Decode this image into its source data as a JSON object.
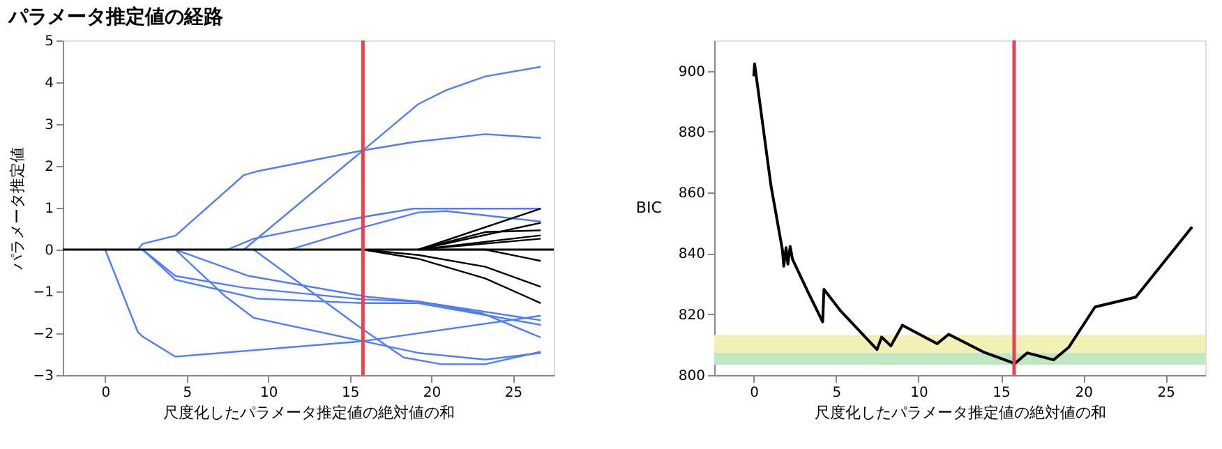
{
  "chart_data": [
    {
      "type": "line",
      "title": "パラメータ推定値の経路",
      "xlabel": "尺度化したパラメータ推定値の絶対値の和",
      "ylabel": "パラメータ推定値",
      "xlim": [
        -2.6,
        27.5
      ],
      "ylim": [
        -3,
        5
      ],
      "xticks": [
        0,
        5,
        10,
        15,
        20,
        25
      ],
      "yticks": [
        -3,
        -2,
        -1,
        0,
        1,
        2,
        3,
        4,
        5
      ],
      "grid": false,
      "marker": "none",
      "line_style": "solid",
      "series": [
        {
          "color": "#4f7df5",
          "x": [
            8.5,
            15.8,
            19.2,
            20.9,
            23.3,
            26.7
          ],
          "values": [
            0,
            2.37,
            3.48,
            3.81,
            4.14,
            4.37
          ]
        },
        {
          "color": "#4f7df5",
          "x": [
            2.0,
            2.3,
            4.3,
            8.5,
            9.3,
            15.8,
            18.9,
            23.3,
            26.7
          ],
          "values": [
            0,
            0.14,
            0.33,
            1.78,
            1.87,
            2.37,
            2.57,
            2.76,
            2.67
          ]
        },
        {
          "color": "#4f7df5",
          "x": [
            7.5,
            9.1,
            15.8,
            18.9,
            26.7
          ],
          "values": [
            0,
            0.26,
            0.78,
            0.98,
            0.98
          ]
        },
        {
          "color": "#4f7df5",
          "x": [
            11.2,
            11.6,
            15.8,
            19.2,
            20.9,
            26.7
          ],
          "values": [
            0,
            0.03,
            0.53,
            0.89,
            0.92,
            0.67
          ]
        },
        {
          "color": "#4f7df5",
          "x": [
            0,
            2.0,
            2.3,
            4.3,
            15.8,
            26.7
          ],
          "values": [
            0,
            -1.97,
            -2.08,
            -2.56,
            -2.19,
            -1.58
          ]
        },
        {
          "color": "#4f7df5",
          "x": [
            2.3,
            4.3,
            8.5,
            15.8,
            19.2,
            26.7
          ],
          "values": [
            0,
            -0.63,
            -0.91,
            -1.19,
            -1.24,
            -1.69
          ]
        },
        {
          "color": "#4f7df5",
          "x": [
            2.3,
            4.3,
            9.3,
            15.8,
            19.2,
            26.7
          ],
          "values": [
            0,
            -0.72,
            -1.17,
            -1.28,
            -1.28,
            -1.8
          ]
        },
        {
          "color": "#4f7df5",
          "x": [
            4.3,
            8.8,
            16.1,
            19.2,
            23.1,
            26.7
          ],
          "values": [
            0,
            -0.63,
            -1.13,
            -1.24,
            -1.52,
            -2.1
          ]
        },
        {
          "color": "#4f7df5",
          "x": [
            4.3,
            7.4,
            9.1,
            15.8,
            19.2,
            23.3,
            26.7
          ],
          "values": [
            0,
            -1.13,
            -1.63,
            -2.19,
            -2.47,
            -2.63,
            -2.47
          ]
        },
        {
          "color": "#4f7df5",
          "x": [
            9.1,
            15.8,
            18.3,
            20.6,
            23.3,
            26.7
          ],
          "values": [
            0,
            -1.91,
            -2.58,
            -2.74,
            -2.74,
            -2.44
          ]
        },
        {
          "color": "#000000",
          "x": [
            15.8,
            19.2,
            23.3,
            26.7
          ],
          "values": [
            0,
            -0.22,
            -0.69,
            -1.28
          ]
        },
        {
          "color": "#000000",
          "x": [
            15.8,
            19.2,
            23.3,
            26.7
          ],
          "values": [
            0,
            -0.13,
            -0.41,
            -0.89
          ]
        },
        {
          "color": "#000000",
          "x": [
            19.2,
            26.7
          ],
          "values": [
            0,
            0.98
          ]
        },
        {
          "color": "#000000",
          "x": [
            19.2,
            23.3,
            26.7
          ],
          "values": [
            0,
            0.42,
            0.46
          ]
        },
        {
          "color": "#000000",
          "x": [
            19.2,
            26.7
          ],
          "values": [
            0,
            0.64
          ]
        },
        {
          "color": "#000000",
          "x": [
            19.2,
            26.7
          ],
          "values": [
            0,
            0.34
          ]
        },
        {
          "color": "#000000",
          "x": [
            19.2,
            26.7
          ],
          "values": [
            0,
            0.26
          ]
        },
        {
          "color": "#000000",
          "x": [
            19.2,
            23.3,
            26.7
          ],
          "values": [
            0,
            0,
            -0.27
          ]
        }
      ],
      "ref_lines": [
        {
          "axis": "y",
          "value": 0,
          "color": "#000000"
        },
        {
          "axis": "x",
          "value": 15.8,
          "color": "#e8414f"
        }
      ]
    },
    {
      "type": "line",
      "xlabel": "尺度化したパラメータ推定値の絶対値の和",
      "ylabel": "BIC",
      "xlim": [
        -2.4,
        27.4
      ],
      "ylim": [
        800,
        910
      ],
      "xticks": [
        0,
        5,
        10,
        15,
        20,
        25
      ],
      "yticks": [
        800,
        820,
        840,
        860,
        880,
        900
      ],
      "grid": false,
      "marker": "none",
      "line_style": "solid",
      "series": [
        {
          "color": "#000000",
          "x": [
            0,
            0.05,
            1.04,
            1.74,
            1.82,
            1.96,
            2.07,
            2.21,
            2.35,
            3.28,
            4.18,
            4.26,
            5.24,
            7.48,
            7.76,
            8.32,
            9.02,
            11.13,
            11.83,
            13.93,
            15.84,
            16.59,
            18.19,
            19.11,
            20.71,
            23.18,
            26.6
          ],
          "values": [
            898.2,
            902.3,
            862.4,
            841.1,
            835.8,
            841.9,
            836.5,
            842.3,
            838.1,
            827.4,
            817.5,
            828.2,
            821.3,
            808.4,
            812.5,
            809.6,
            816.4,
            810.3,
            813.4,
            807.6,
            803.8,
            807.3,
            805.0,
            809.1,
            822.4,
            825.6,
            848.7
          ]
        }
      ],
      "bands": [
        {
          "axis": "y",
          "from": 807.3,
          "to": 813.2,
          "color": "#f3f0b5"
        },
        {
          "axis": "y",
          "from": 803.4,
          "to": 807.3,
          "color": "#bfe8c0"
        }
      ],
      "ref_lines": [
        {
          "axis": "x",
          "value": 15.8,
          "color": "#e8414f"
        }
      ]
    }
  ]
}
